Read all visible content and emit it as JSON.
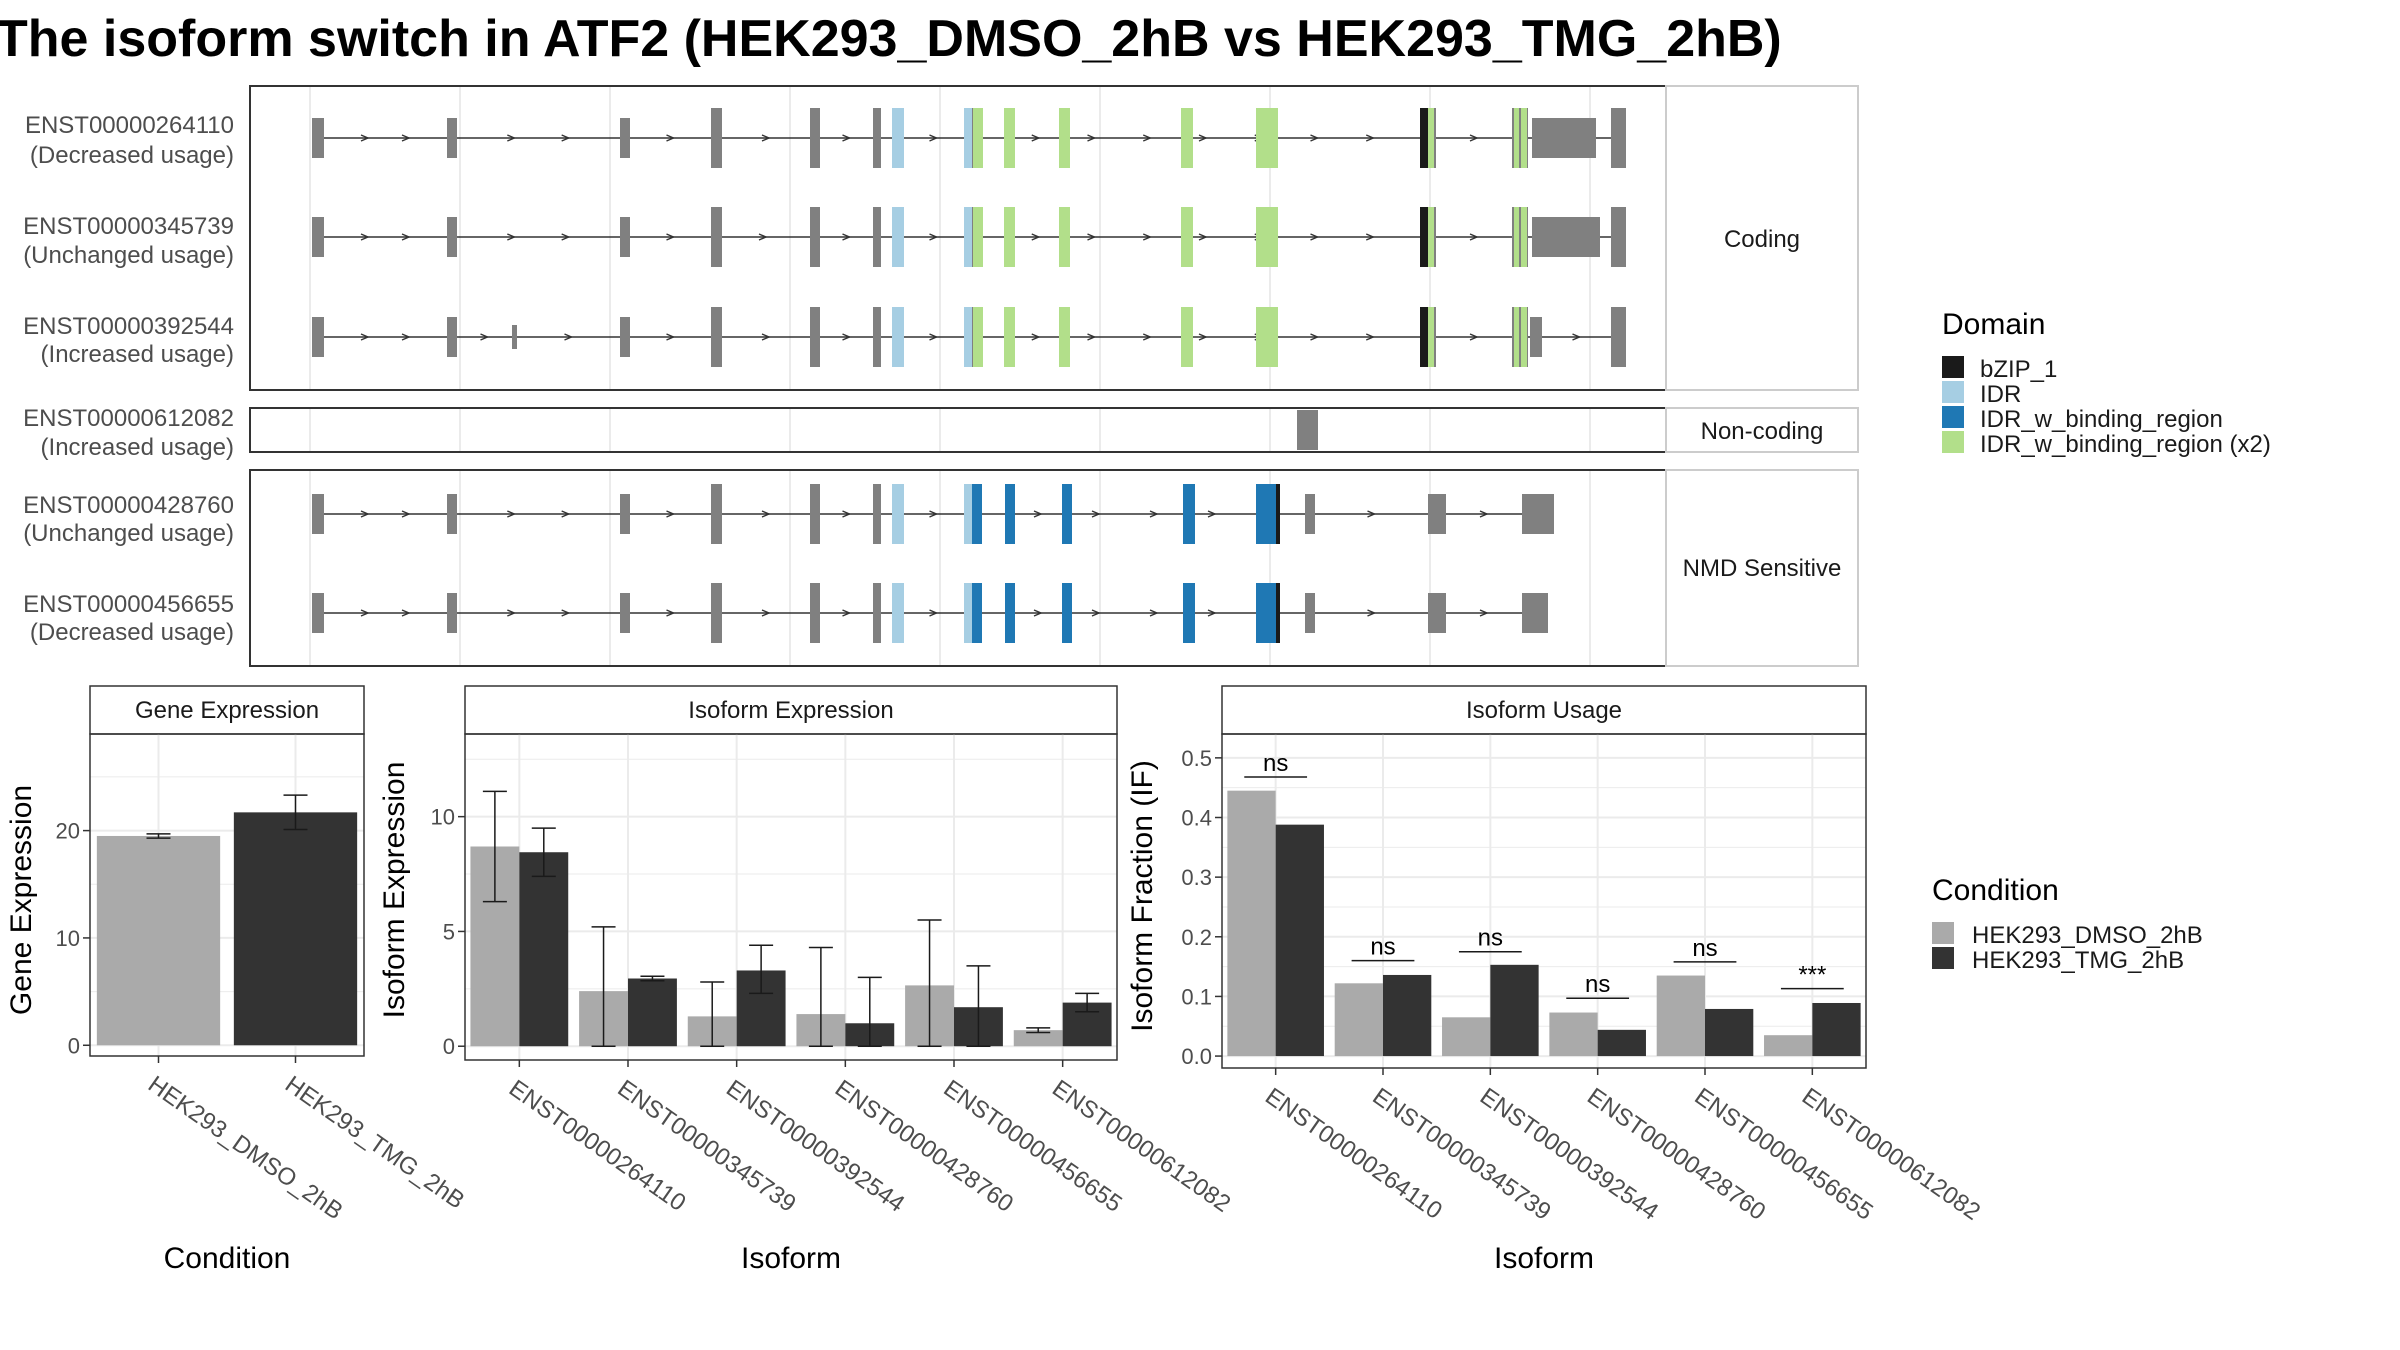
{
  "title": "The isoform switch in ATF2 (HEK293_DMSO_2hB vs HEK293_TMG_2hB)",
  "structure": {
    "strips": [
      "Coding",
      "Non-coding",
      "NMD Sensitive"
    ],
    "transcripts": [
      {
        "id": "ENST00000264110",
        "usage": "(Decreased usage)",
        "group": "Coding"
      },
      {
        "id": "ENST00000345739",
        "usage": "(Unchanged usage)",
        "group": "Coding"
      },
      {
        "id": "ENST00000392544",
        "usage": "(Increased usage)",
        "group": "Coding"
      },
      {
        "id": "ENST00000612082",
        "usage": "(Increased usage)",
        "group": "Non-coding"
      },
      {
        "id": "ENST00000428760",
        "usage": "(Unchanged usage)",
        "group": "NMD Sensitive"
      },
      {
        "id": "ENST00000456655",
        "usage": "(Decreased usage)",
        "group": "NMD Sensitive"
      }
    ]
  },
  "legends": {
    "domain": {
      "title": "Domain",
      "items": [
        {
          "label": "bZIP_1",
          "color": "#1a1a1a"
        },
        {
          "label": "IDR",
          "color": "#a6cee3"
        },
        {
          "label": "IDR_w_binding_region",
          "color": "#1f78b4"
        },
        {
          "label": "IDR_w_binding_region (x2)",
          "color": "#b2df8a"
        }
      ]
    },
    "condition": {
      "title": "Condition",
      "items": [
        {
          "label": "HEK293_DMSO_2hB",
          "color": "#aaaaaa"
        },
        {
          "label": "HEK293_TMG_2hB",
          "color": "#333333"
        }
      ]
    }
  },
  "colors": {
    "exon": "#808080",
    "intron": "#333333",
    "grid": "#ebebeb",
    "border": "#333333",
    "strip_border": "#cccccc"
  },
  "chart_data": [
    {
      "type": "bar",
      "title": "Gene Expression",
      "xlabel": "Condition",
      "ylabel": "Gene Expression",
      "categories": [
        "HEK293_DMSO_2hB",
        "HEK293_TMG_2hB"
      ],
      "values": [
        19.5,
        21.7
      ],
      "err_low": [
        19.3,
        20.1
      ],
      "err_high": [
        19.7,
        23.3
      ],
      "ylim": [
        -1,
        29
      ],
      "yticks": [
        0,
        10,
        20
      ]
    },
    {
      "type": "bar",
      "title": "Isoform Expression",
      "xlabel": "Isoform",
      "ylabel": "Isoform Expression",
      "categories": [
        "ENST00000264110",
        "ENST00000345739",
        "ENST00000392544",
        "ENST00000428760",
        "ENST00000456655",
        "ENST00000612082"
      ],
      "series": [
        {
          "name": "HEK293_DMSO_2hB",
          "values": [
            8.7,
            2.4,
            1.3,
            1.4,
            2.65,
            0.7
          ],
          "err_low": [
            6.3,
            0.0,
            0.0,
            0.0,
            0.0,
            0.6
          ],
          "err_high": [
            11.1,
            5.2,
            2.8,
            4.3,
            5.5,
            0.8
          ]
        },
        {
          "name": "HEK293_TMG_2hB",
          "values": [
            8.45,
            2.95,
            3.3,
            1.0,
            1.7,
            1.9
          ],
          "err_low": [
            7.4,
            2.85,
            2.3,
            0.0,
            0.0,
            1.5
          ],
          "err_high": [
            9.5,
            3.05,
            4.4,
            3.0,
            3.5,
            2.3
          ]
        }
      ],
      "ylim": [
        -0.6,
        13.6
      ],
      "yticks": [
        0,
        5,
        10
      ]
    },
    {
      "type": "bar",
      "title": "Isoform Usage",
      "xlabel": "Isoform",
      "ylabel": "Isoform Fraction (IF)",
      "categories": [
        "ENST00000264110",
        "ENST00000345739",
        "ENST00000392544",
        "ENST00000428760",
        "ENST00000456655",
        "ENST00000612082"
      ],
      "series": [
        {
          "name": "HEK293_DMSO_2hB",
          "values": [
            0.445,
            0.122,
            0.065,
            0.073,
            0.135,
            0.035
          ]
        },
        {
          "name": "HEK293_TMG_2hB",
          "values": [
            0.388,
            0.136,
            0.153,
            0.044,
            0.079,
            0.089
          ]
        }
      ],
      "significance": [
        "ns",
        "ns",
        "ns",
        "ns",
        "ns",
        "***"
      ],
      "significance_y": [
        0.468,
        0.16,
        0.175,
        0.097,
        0.158,
        0.113
      ],
      "ylim": [
        -0.02,
        0.54
      ],
      "yticks": [
        0.0,
        0.1,
        0.2,
        0.3,
        0.4,
        0.5
      ],
      "ytick_labels": [
        "0.0",
        "0.1",
        "0.2",
        "0.3",
        "0.4",
        "0.5"
      ]
    }
  ]
}
